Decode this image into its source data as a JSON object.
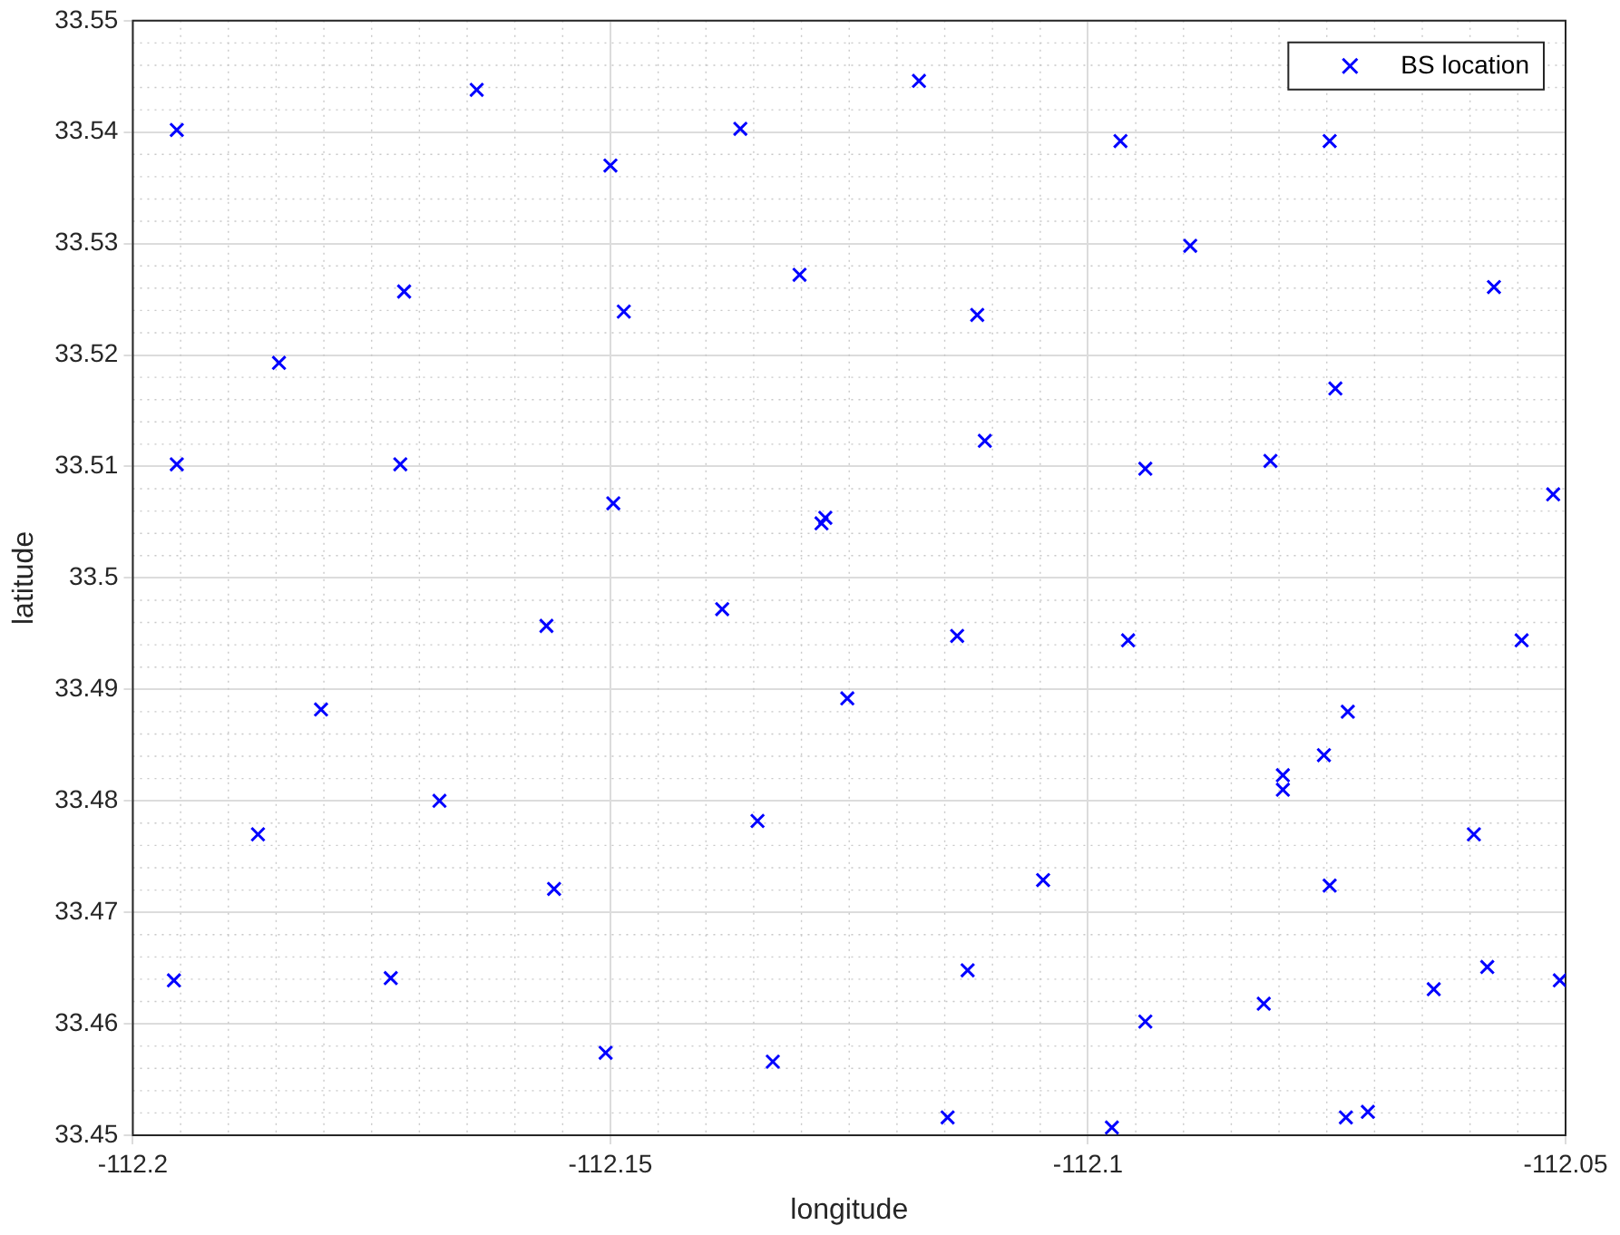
{
  "chart_data": {
    "type": "scatter",
    "xlabel": "longitude",
    "ylabel": "latitude",
    "xlim": [
      -112.2,
      -112.05
    ],
    "xticks": [
      -112.2,
      -112.15,
      -112.1,
      -112.05
    ],
    "ylim": [
      33.45,
      33.55
    ],
    "yticks": [
      33.45,
      33.46,
      33.47,
      33.48,
      33.49,
      33.5,
      33.51,
      33.52,
      33.53,
      33.54,
      33.55
    ],
    "grid": true,
    "legend": "top right",
    "marker": "cross",
    "series": [
      {
        "name": "BS location",
        "color": "#0000ff",
        "x": [
          -112.1954,
          -112.164,
          -112.15,
          -112.1364,
          -112.1177,
          -112.0966,
          -112.0747,
          -112.0893,
          -112.1716,
          -112.1486,
          -112.1302,
          -112.1116,
          -112.0575,
          -112.1847,
          -112.0741,
          -112.1954,
          -112.172,
          -112.1497,
          -112.1275,
          -112.1279,
          -112.1108,
          -112.094,
          -112.0809,
          -112.0513,
          -112.1567,
          -112.1383,
          -112.1137,
          -112.0958,
          -112.0546,
          -112.1803,
          -112.1252,
          -112.0728,
          -112.0753,
          -112.0796,
          -112.0796,
          -112.1679,
          -112.1869,
          -112.1346,
          -112.0596,
          -112.1559,
          -112.1047,
          -112.0747,
          -112.1957,
          -112.173,
          -112.1126,
          -112.094,
          -112.0816,
          -112.0638,
          -112.0582,
          -112.0506,
          -112.1505,
          -112.133,
          -112.1147,
          -112.0975,
          -112.073,
          -112.0707
        ],
        "values": [
          33.5402,
          33.5438,
          33.537,
          33.5403,
          33.5446,
          33.5392,
          33.5392,
          33.5298,
          33.5257,
          33.5239,
          33.5272,
          33.5236,
          33.5261,
          33.5193,
          33.517,
          33.5102,
          33.5102,
          33.5067,
          33.5054,
          33.5049,
          33.5123,
          33.5098,
          33.5105,
          33.5075,
          33.4957,
          33.4972,
          33.4948,
          33.4944,
          33.4944,
          33.4882,
          33.4892,
          33.488,
          33.4841,
          33.4823,
          33.481,
          33.48,
          33.477,
          33.4782,
          33.477,
          33.4721,
          33.4729,
          33.4724,
          33.4639,
          33.4641,
          33.4648,
          33.4602,
          33.4618,
          33.4631,
          33.4651,
          33.4639,
          33.4574,
          33.4566,
          33.4516,
          33.4507,
          33.4516,
          33.4521
        ]
      }
    ]
  }
}
